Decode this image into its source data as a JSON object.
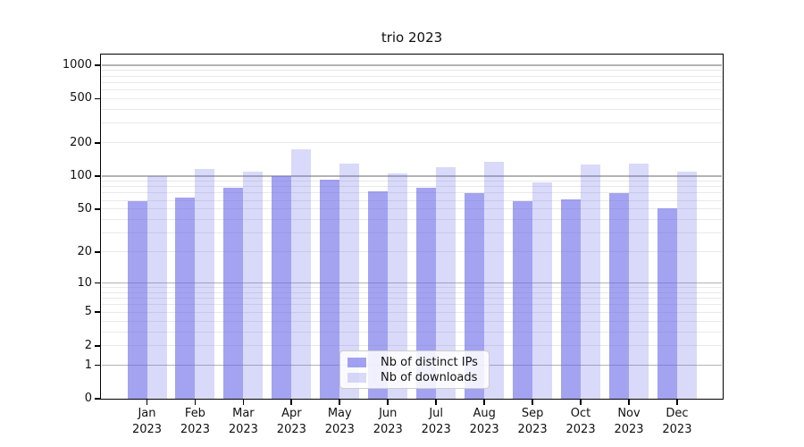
{
  "chart_data": {
    "type": "bar",
    "title": "trio 2023",
    "xlabel": "",
    "ylabel": "",
    "yscale": "log1p",
    "ylim": [
      0,
      1250
    ],
    "grid": true,
    "legend_position": "lower center",
    "yticks": [
      0,
      1,
      2,
      5,
      10,
      20,
      50,
      100,
      200,
      500,
      1000
    ],
    "grid_major_values": [
      1,
      10,
      100,
      1000
    ],
    "grid_minor_values": [
      2,
      3,
      4,
      5,
      6,
      7,
      8,
      9,
      20,
      30,
      40,
      50,
      60,
      70,
      80,
      90,
      200,
      300,
      400,
      500,
      600,
      700,
      800,
      900
    ],
    "categories": [
      "Jan 2023",
      "Feb 2023",
      "Mar 2023",
      "Apr 2023",
      "May 2023",
      "Jun 2023",
      "Jul 2023",
      "Aug 2023",
      "Sep 2023",
      "Oct 2023",
      "Nov 2023",
      "Dec 2023"
    ],
    "series": [
      {
        "name": "Nb of distinct IPs",
        "color": "rgba(102,102,232,0.6)",
        "values": [
          59,
          63,
          78,
          100,
          93,
          73,
          78,
          70,
          59,
          61,
          70,
          51
        ]
      },
      {
        "name": "Nb of downloads",
        "color": "rgba(102,102,232,0.25)",
        "values": [
          100,
          115,
          110,
          175,
          130,
          105,
          120,
          135,
          88,
          128,
          130,
          110
        ]
      }
    ],
    "colors": {
      "grid_major": "#b3b3b3",
      "grid_minor": "#e9e9e9",
      "axis": "#000000",
      "tick_label": "#111111",
      "legend_border": "#cccccc",
      "legend_background": "rgba(255,255,255,0.85)"
    }
  }
}
